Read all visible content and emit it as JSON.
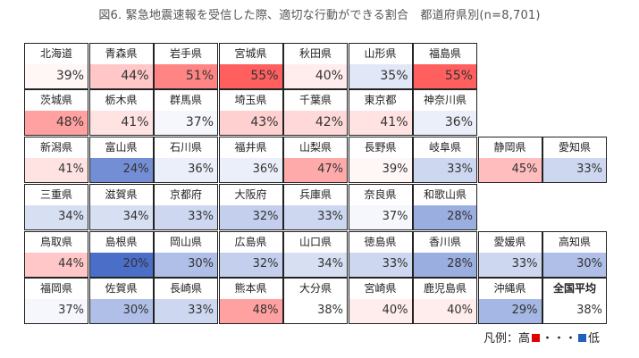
{
  "title": "図6. 緊急地震速報を受信した際、適切な行動ができる割合　都道府県別(n=8,701)",
  "legend": {
    "label": "凡例：",
    "high": "高",
    "dots": "・・・",
    "low": "低",
    "high_color": "#e00000",
    "low_color": "#1f5fbf"
  },
  "chart_data": {
    "type": "table",
    "title": "図6. 緊急地震速報を受信した際、適切な行動ができる割合　都道府県別(n=8,701)",
    "unit": "%",
    "rows": [
      [
        [
          "北海道",
          39
        ],
        [
          "青森県",
          44
        ],
        [
          "岩手県",
          51
        ],
        [
          "宮城県",
          55
        ],
        [
          "秋田県",
          40
        ],
        [
          "山形県",
          35
        ],
        [
          "福島県",
          55
        ]
      ],
      [
        [
          "茨城県",
          48
        ],
        [
          "栃木県",
          41
        ],
        [
          "群馬県",
          37
        ],
        [
          "埼玉県",
          43
        ],
        [
          "千葉県",
          42
        ],
        [
          "東京都",
          41
        ],
        [
          "神奈川県",
          36
        ]
      ],
      [
        [
          "新潟県",
          41
        ],
        [
          "富山県",
          24
        ],
        [
          "石川県",
          36
        ],
        [
          "福井県",
          36
        ],
        [
          "山梨県",
          47
        ],
        [
          "長野県",
          39
        ],
        [
          "岐阜県",
          33
        ],
        [
          "静岡県",
          45
        ],
        [
          "愛知県",
          33
        ]
      ],
      [
        [
          "三重県",
          34
        ],
        [
          "滋賀県",
          34
        ],
        [
          "京都府",
          33
        ],
        [
          "大阪府",
          32
        ],
        [
          "兵庫県",
          33
        ],
        [
          "奈良県",
          37
        ],
        [
          "和歌山県",
          28
        ]
      ],
      [
        [
          "鳥取県",
          44
        ],
        [
          "島根県",
          20
        ],
        [
          "岡山県",
          30
        ],
        [
          "広島県",
          32
        ],
        [
          "山口県",
          34
        ],
        [
          "徳島県",
          33
        ],
        [
          "香川県",
          28
        ],
        [
          "愛媛県",
          33
        ],
        [
          "高知県",
          30
        ]
      ],
      [
        [
          "福岡県",
          37
        ],
        [
          "佐賀県",
          30
        ],
        [
          "長崎県",
          33
        ],
        [
          "熊本県",
          48
        ],
        [
          "大分県",
          38
        ],
        [
          "宮崎県",
          40
        ],
        [
          "鹿児島県",
          40
        ],
        [
          "沖縄県",
          29
        ],
        [
          "全国平均",
          38
        ]
      ]
    ]
  }
}
